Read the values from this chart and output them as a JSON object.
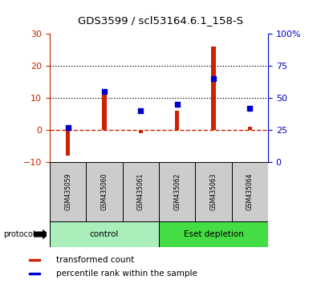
{
  "title": "GDS3599 / scl53164.6.1_158-S",
  "samples": [
    "GSM435059",
    "GSM435060",
    "GSM435061",
    "GSM435062",
    "GSM435063",
    "GSM435064"
  ],
  "red_values": [
    -8.0,
    11.0,
    -1.0,
    6.0,
    26.0,
    1.0
  ],
  "blue_values_pct": [
    27,
    55,
    40,
    45,
    65,
    42
  ],
  "ylim_left": [
    -10,
    30
  ],
  "ylim_right": [
    0,
    100
  ],
  "yticks_left": [
    -10,
    0,
    10,
    20,
    30
  ],
  "yticks_right": [
    0,
    25,
    50,
    75,
    100
  ],
  "ytick_labels_right": [
    "0",
    "25",
    "50",
    "75",
    "100%"
  ],
  "hlines": [
    0,
    10,
    20
  ],
  "hline_styles": [
    "dashed",
    "dotted",
    "dotted"
  ],
  "hline_colors": [
    "#cc2200",
    "#000000",
    "#000000"
  ],
  "groups": [
    {
      "label": "control",
      "indices": [
        0,
        1,
        2
      ],
      "color": "#aaeebb"
    },
    {
      "label": "Eset depletion",
      "indices": [
        3,
        4,
        5
      ],
      "color": "#44dd44"
    }
  ],
  "protocol_label": "protocol",
  "bar_color": "#cc2200",
  "dot_color": "#0000cc",
  "bg_color": "#ffffff",
  "tick_box_color": "#cccccc",
  "legend_red_label": "transformed count",
  "legend_blue_label": "percentile rank within the sample"
}
